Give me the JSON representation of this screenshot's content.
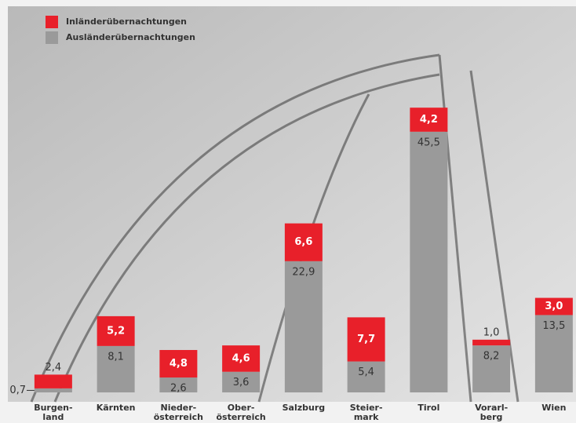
{
  "chart_data": {
    "type": "bar",
    "stacked": true,
    "categories": [
      "Burgen-\nland",
      "Kärnten",
      "Nieder-\nösterreich",
      "Ober-\nösterreich",
      "Salzburg",
      "Steier-\nmark",
      "Tirol",
      "Vorarl-\nberg",
      "Wien"
    ],
    "series": [
      {
        "name": "Ausländerübernachtungen",
        "color": "#9a9a9a",
        "values": [
          0.7,
          8.1,
          2.6,
          3.6,
          22.9,
          5.4,
          45.5,
          8.2,
          13.5
        ],
        "value_labels": [
          "0,7",
          "8,1",
          "2,6",
          "3,6",
          "22,9",
          "5,4",
          "45,5",
          "8,2",
          "13,5"
        ]
      },
      {
        "name": "Inländerübernachtungen",
        "color": "#e8202a",
        "values": [
          2.4,
          5.2,
          4.8,
          4.6,
          6.6,
          7.7,
          4.2,
          1.0,
          3.0
        ],
        "value_labels": [
          "2,4",
          "5,2",
          "4,8",
          "4,6",
          "6,6",
          "7,7",
          "4,2",
          "1,0",
          "3,0"
        ]
      }
    ],
    "ylim": [
      0,
      60
    ]
  }
}
